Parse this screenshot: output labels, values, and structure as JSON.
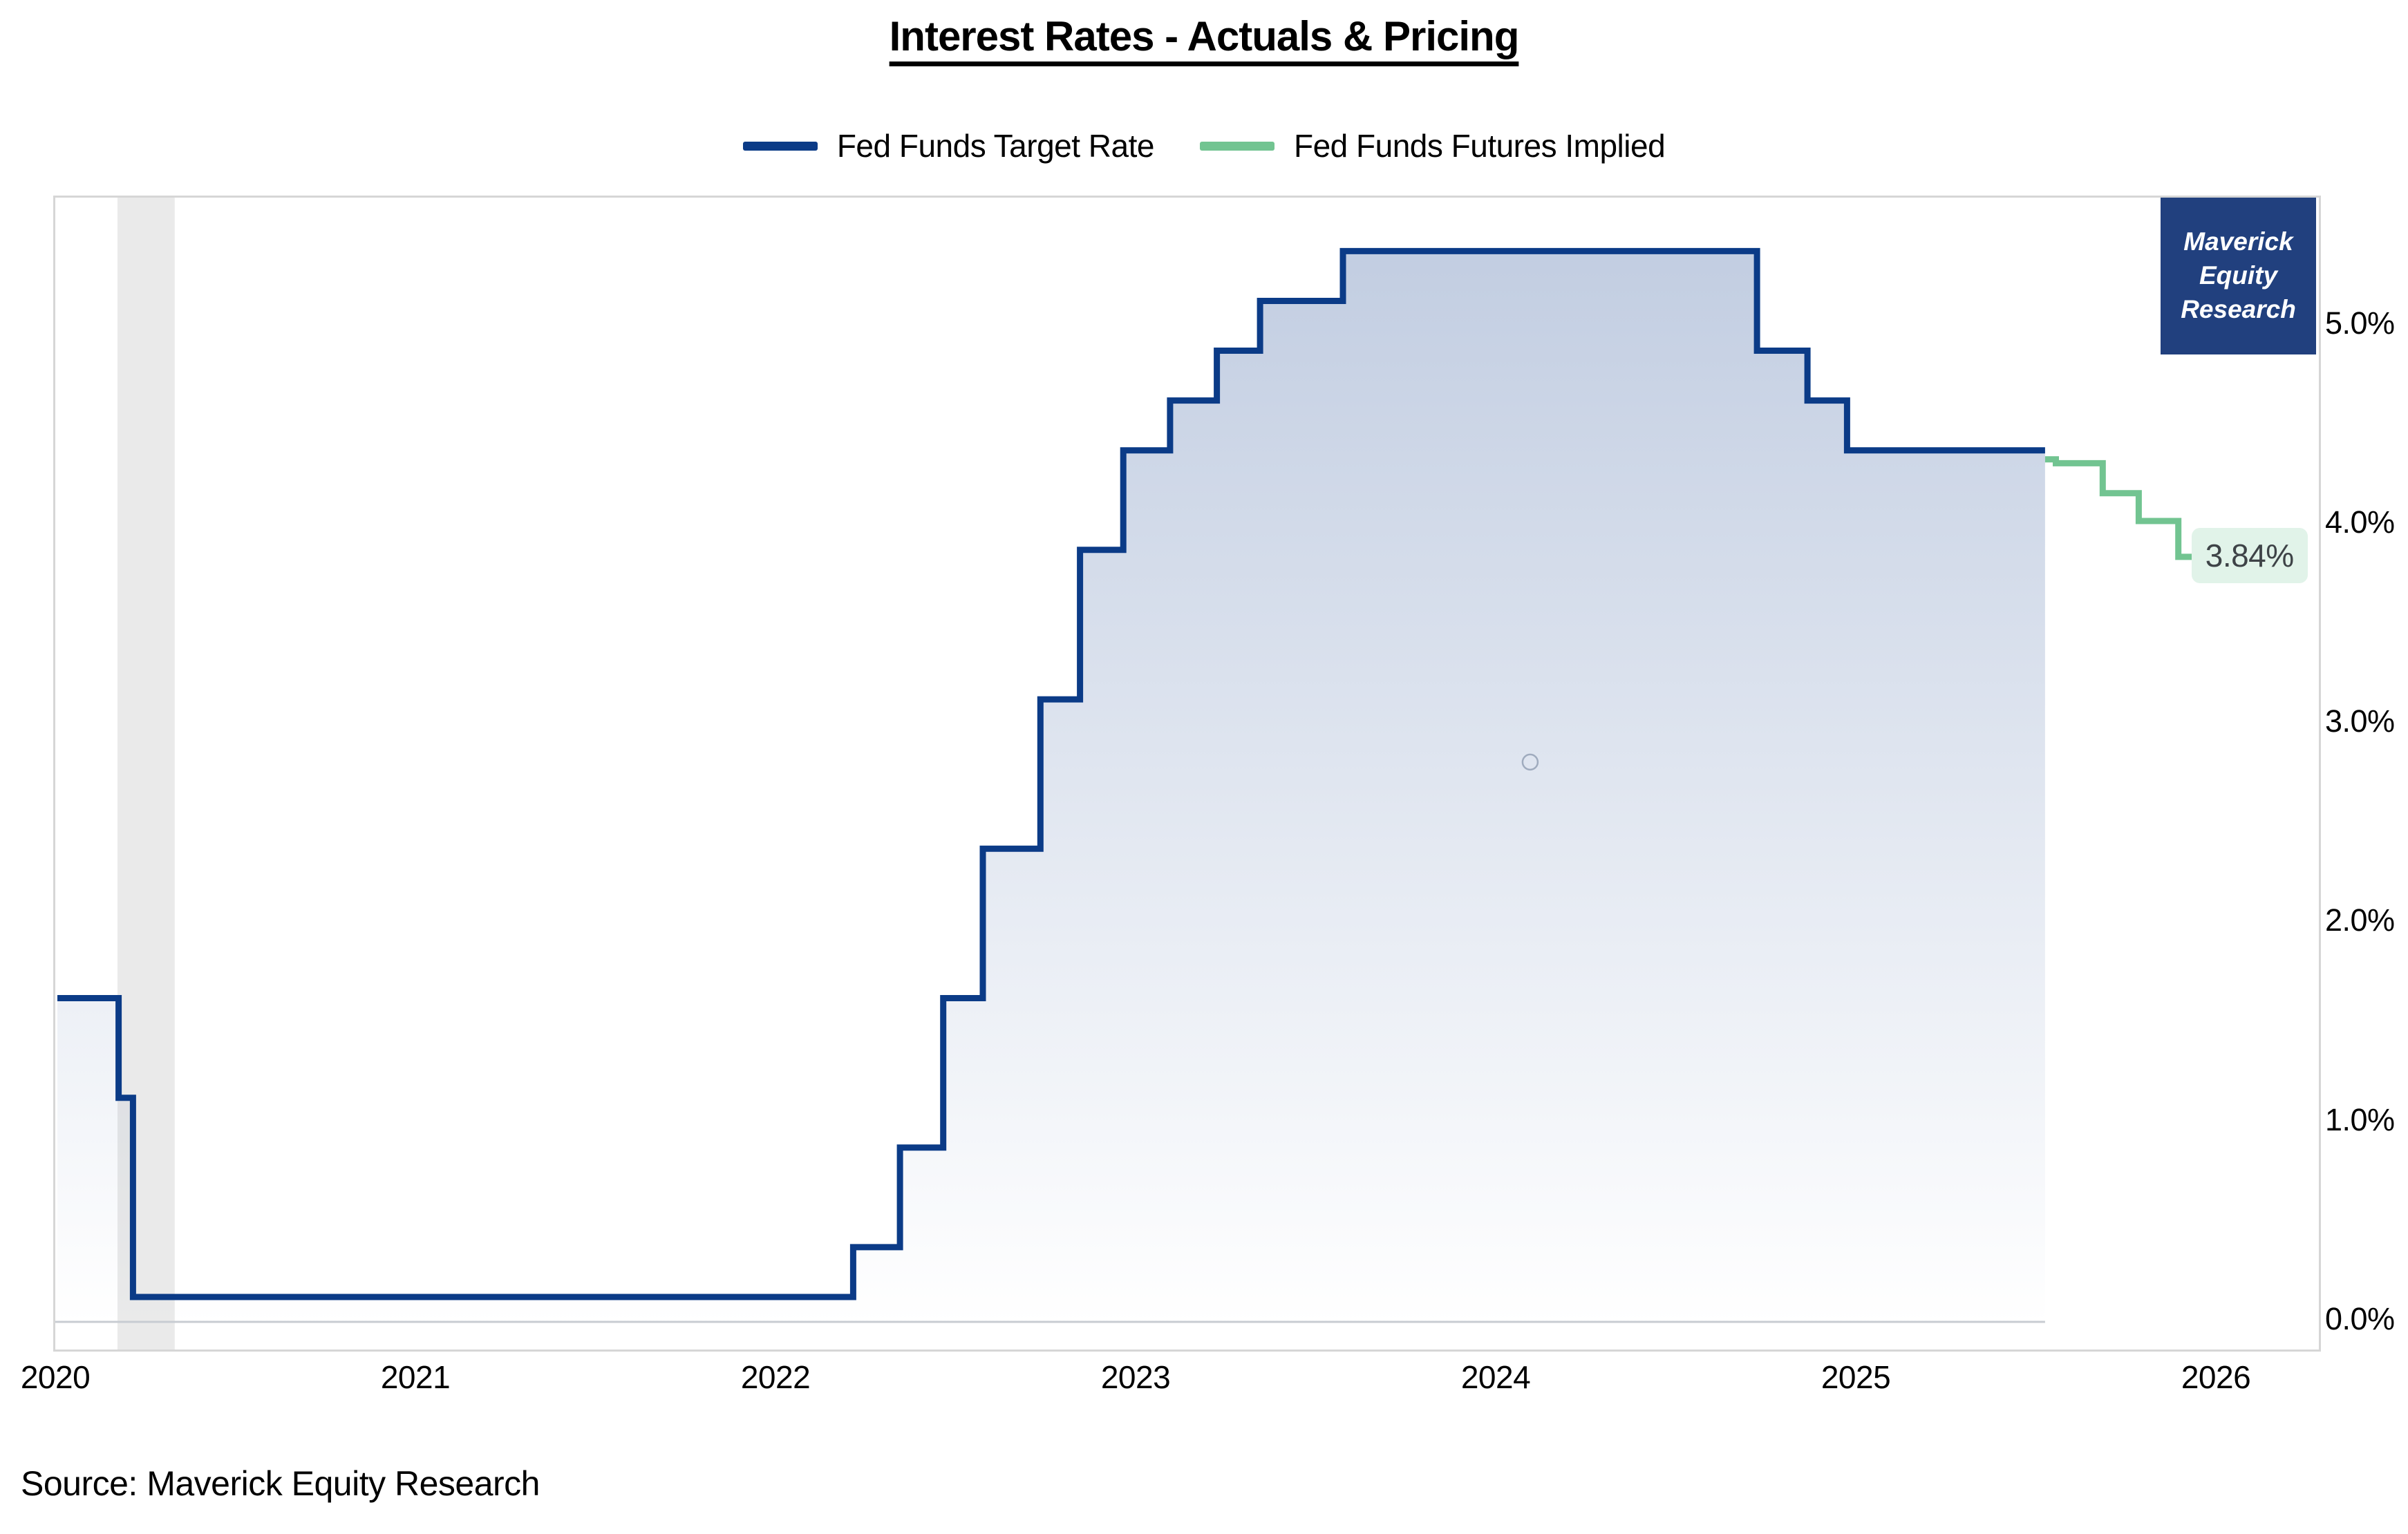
{
  "title": "Interest Rates - Actuals & Pricing",
  "legend": [
    {
      "label": "Fed Funds Target Rate",
      "color": "#0b3b87"
    },
    {
      "label": "Fed Funds Futures Implied",
      "color": "#72c491"
    }
  ],
  "badge": {
    "lines": [
      "Maverick",
      "Equity",
      "Research"
    ],
    "bg": "#21407e"
  },
  "source": "Source: Maverick Equity Research",
  "colors": {
    "target_line": "#0b3b87",
    "futures_line": "#72c491",
    "fill_top": "#bfcbe0",
    "fill_bottom": "#ffffff",
    "plot_border": "#d6d6d6",
    "recession_band": "rgba(125,125,125,0.16)",
    "zero_line": "#c8ccd2",
    "annotation_bg": "#e1f3e9",
    "annotation_text": "#3e4347"
  },
  "chart_data": {
    "type": "line",
    "title": "Interest Rates - Actuals & Pricing",
    "xlabel": "",
    "ylabel": "",
    "xlim": [
      2019.99,
      2026.28
    ],
    "ylim": [
      -0.14,
      5.64
    ],
    "grid": false,
    "legend_position": "top-center",
    "x_ticks": [
      2020,
      2021,
      2022,
      2023,
      2024,
      2025,
      2026
    ],
    "y_ticks": [
      {
        "v": 0,
        "label": "0.0%"
      },
      {
        "v": 1,
        "label": "1.0%"
      },
      {
        "v": 2,
        "label": "2.0%"
      },
      {
        "v": 3,
        "label": "3.0%"
      },
      {
        "v": 4,
        "label": "4.0%"
      },
      {
        "v": 5,
        "label": "5.0%"
      }
    ],
    "series": [
      {
        "name": "Fed Funds Target Rate",
        "color": "#0b3b87",
        "step": true,
        "fill": true,
        "points": [
          [
            2020.0,
            1.625
          ],
          [
            2020.17,
            1.125
          ],
          [
            2020.21,
            0.125
          ],
          [
            2022.21,
            0.375
          ],
          [
            2022.34,
            0.875
          ],
          [
            2022.46,
            1.625
          ],
          [
            2022.57,
            2.375
          ],
          [
            2022.73,
            3.125
          ],
          [
            2022.84,
            3.875
          ],
          [
            2022.96,
            4.375
          ],
          [
            2023.09,
            4.625
          ],
          [
            2023.22,
            4.875
          ],
          [
            2023.34,
            5.125
          ],
          [
            2023.57,
            5.375
          ],
          [
            2024.72,
            4.875
          ],
          [
            2024.86,
            4.625
          ],
          [
            2024.97,
            4.375
          ],
          [
            2025.52,
            4.375
          ]
        ]
      },
      {
        "name": "Fed Funds Futures Implied",
        "color": "#72c491",
        "step": true,
        "fill": false,
        "points": [
          [
            2025.52,
            4.33
          ],
          [
            2025.55,
            4.31
          ],
          [
            2025.68,
            4.16
          ],
          [
            2025.78,
            4.02
          ],
          [
            2025.89,
            3.84
          ],
          [
            2025.94,
            3.84
          ]
        ]
      }
    ],
    "recession_band": [
      2020.167,
      2020.326
    ],
    "annotation": {
      "text": "3.84%",
      "x": 2025.94,
      "y": 3.84
    },
    "watermark_circle": {
      "x": 2024.09,
      "y": 2.81
    }
  }
}
